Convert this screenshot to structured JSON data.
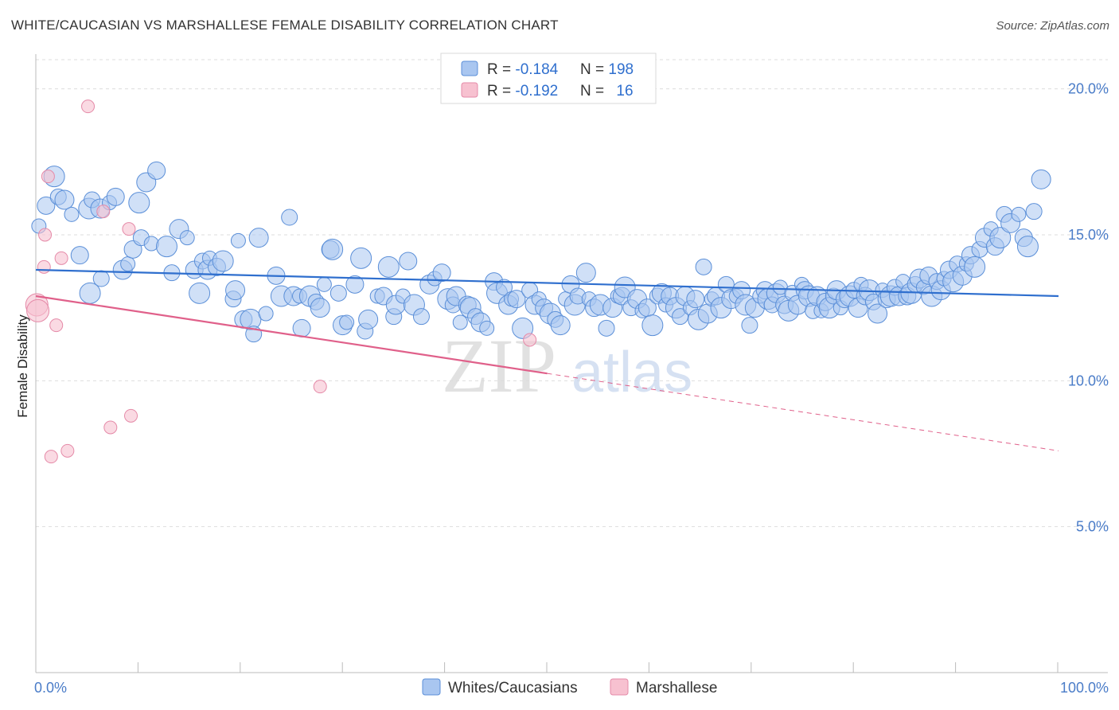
{
  "title": "WHITE/CAUCASIAN VS MARSHALLESE FEMALE DISABILITY CORRELATION CHART",
  "source": "Source: ZipAtlas.com",
  "watermark": {
    "zip": "ZIP",
    "atlas": "atlas"
  },
  "colors": {
    "blue_fill": "#a9c6f0",
    "blue_stroke": "#5b8fd8",
    "blue_line": "#2f6fce",
    "pink_fill": "#f7c1d0",
    "pink_stroke": "#e58aa8",
    "pink_line": "#e0608a",
    "tick_text": "#4a7cc8",
    "grid": "#dddddd"
  },
  "legend": {
    "rows": [
      {
        "r_label": "R = ",
        "r_value": "-0.184",
        "n_label": "N = ",
        "n_value": "198",
        "series": "blue"
      },
      {
        "r_label": "R = ",
        "r_value": "-0.192",
        "n_label": "N = ",
        "n_value": "16",
        "series": "pink"
      }
    ]
  },
  "chart_data": {
    "type": "scatter",
    "title": "WHITE/CAUCASIAN VS MARSHALLESE FEMALE DISABILITY CORRELATION CHART",
    "xlabel": "",
    "ylabel": "Female Disability",
    "xlim": [
      0,
      100
    ],
    "ylim": [
      0,
      21
    ],
    "x_tick_labels": [
      "0.0%",
      "100.0%"
    ],
    "y_ticks": [
      5,
      10,
      15,
      20
    ],
    "y_tick_labels": [
      "5.0%",
      "10.0%",
      "15.0%",
      "20.0%"
    ],
    "grid": true,
    "legend_position": "top-center",
    "series": [
      {
        "name": "Whites/Caucasians",
        "color": "#a9c6f0",
        "r": -0.184,
        "n": 198,
        "trend": {
          "x": [
            0,
            100
          ],
          "y": [
            13.8,
            12.9
          ]
        },
        "points": [
          [
            0.3,
            15.3
          ],
          [
            1,
            16
          ],
          [
            1.8,
            17
          ],
          [
            2.2,
            16.3
          ],
          [
            2.8,
            16.2
          ],
          [
            3.5,
            15.7
          ],
          [
            4.3,
            14.3
          ],
          [
            5.2,
            15.9
          ],
          [
            5.5,
            16.2
          ],
          [
            6.3,
            15.9
          ],
          [
            7.2,
            16.1
          ],
          [
            7.8,
            16.3
          ],
          [
            5.3,
            13.0
          ],
          [
            6.4,
            13.5
          ],
          [
            8.5,
            13.8
          ],
          [
            9,
            14
          ],
          [
            9.5,
            14.5
          ],
          [
            10.1,
            16.1
          ],
          [
            10.3,
            14.9
          ],
          [
            10.8,
            16.8
          ],
          [
            11.3,
            14.7
          ],
          [
            11.8,
            17.2
          ],
          [
            12.8,
            14.6
          ],
          [
            13.3,
            13.7
          ],
          [
            14,
            15.2
          ],
          [
            14.8,
            14.9
          ],
          [
            15.5,
            13.8
          ],
          [
            16,
            13
          ],
          [
            16.3,
            14.1
          ],
          [
            16.8,
            13.8
          ],
          [
            17,
            14.2
          ],
          [
            17.7,
            13.9
          ],
          [
            18.3,
            14.1
          ],
          [
            19.3,
            12.8
          ],
          [
            19.5,
            13.1
          ],
          [
            19.8,
            14.8
          ],
          [
            20.3,
            12.1
          ],
          [
            21,
            12.1
          ],
          [
            21.3,
            11.6
          ],
          [
            21.8,
            14.9
          ],
          [
            22.5,
            12.3
          ],
          [
            23.5,
            13.6
          ],
          [
            24,
            12.9
          ],
          [
            24.8,
            15.6
          ],
          [
            25.2,
            12.9
          ],
          [
            25.8,
            12.9
          ],
          [
            26,
            11.8
          ],
          [
            26.8,
            12.9
          ],
          [
            27.4,
            12.7
          ],
          [
            27.8,
            12.5
          ],
          [
            28.2,
            13.3
          ],
          [
            28.8,
            14.5
          ],
          [
            29,
            14.5
          ],
          [
            29.6,
            13
          ],
          [
            30,
            11.9
          ],
          [
            30.4,
            12
          ],
          [
            31.2,
            13.3
          ],
          [
            31.8,
            14.2
          ],
          [
            32.2,
            11.7
          ],
          [
            32.5,
            12.1
          ],
          [
            33.4,
            12.9
          ],
          [
            34,
            12.9
          ],
          [
            34.5,
            13.9
          ],
          [
            35,
            12.2
          ],
          [
            35.2,
            12.6
          ],
          [
            35.9,
            12.9
          ],
          [
            36.4,
            14.1
          ],
          [
            37,
            12.6
          ],
          [
            37.7,
            12.2
          ],
          [
            38.5,
            13.3
          ],
          [
            39,
            13.5
          ],
          [
            39.7,
            13.7
          ],
          [
            40.3,
            12.8
          ],
          [
            40.8,
            12.6
          ],
          [
            41.1,
            12.9
          ],
          [
            41.5,
            12.0
          ],
          [
            42.2,
            12.6
          ],
          [
            42.5,
            12.5
          ],
          [
            43,
            12.2
          ],
          [
            43.5,
            12.0
          ],
          [
            44.1,
            11.8
          ],
          [
            44.8,
            13.4
          ],
          [
            45.1,
            13.0
          ],
          [
            45.8,
            13.2
          ],
          [
            46.2,
            12.6
          ],
          [
            46.5,
            12.8
          ],
          [
            47,
            12.8
          ],
          [
            47.6,
            11.8
          ],
          [
            48.3,
            13.1
          ],
          [
            48.8,
            12.6
          ],
          [
            49.2,
            12.8
          ],
          [
            49.7,
            12.5
          ],
          [
            50.3,
            12.3
          ],
          [
            50.8,
            12.1
          ],
          [
            51.3,
            11.9
          ],
          [
            51.8,
            12.8
          ],
          [
            52.3,
            13.3
          ],
          [
            52.7,
            12.6
          ],
          [
            53,
            12.9
          ],
          [
            53.8,
            13.7
          ],
          [
            54.1,
            12.8
          ],
          [
            54.6,
            12.5
          ],
          [
            55.2,
            12.6
          ],
          [
            55.8,
            11.8
          ],
          [
            56.4,
            12.5
          ],
          [
            56.9,
            12.9
          ],
          [
            57.3,
            12.9
          ],
          [
            57.6,
            13.2
          ],
          [
            58.2,
            12.5
          ],
          [
            58.8,
            12.8
          ],
          [
            59.3,
            12.4
          ],
          [
            59.8,
            12.5
          ],
          [
            60.3,
            11.9
          ],
          [
            60.8,
            12.9
          ],
          [
            61.2,
            13.0
          ],
          [
            61.6,
            12.6
          ],
          [
            62,
            12.9
          ],
          [
            62.6,
            12.5
          ],
          [
            63,
            12.2
          ],
          [
            63.5,
            12.9
          ],
          [
            64,
            12.5
          ],
          [
            64.5,
            12.8
          ],
          [
            64.8,
            12.1
          ],
          [
            65.3,
            13.9
          ],
          [
            65.7,
            12.3
          ],
          [
            66.1,
            12.8
          ],
          [
            66.5,
            12.9
          ],
          [
            67,
            12.5
          ],
          [
            67.5,
            13.3
          ],
          [
            68,
            12.8
          ],
          [
            68.5,
            12.9
          ],
          [
            69,
            13.1
          ],
          [
            69.4,
            12.6
          ],
          [
            69.8,
            11.9
          ],
          [
            70.3,
            12.5
          ],
          [
            70.8,
            12.9
          ],
          [
            71.3,
            13.1
          ],
          [
            71.6,
            12.8
          ],
          [
            72,
            12.6
          ],
          [
            72.4,
            13.0
          ],
          [
            72.8,
            13.2
          ],
          [
            73.2,
            12.6
          ],
          [
            73.6,
            12.4
          ],
          [
            74,
            13
          ],
          [
            74.5,
            12.6
          ],
          [
            74.9,
            13.3
          ],
          [
            75.2,
            13.1
          ],
          [
            75.6,
            12.9
          ],
          [
            76,
            12.4
          ],
          [
            76.4,
            12.9
          ],
          [
            76.8,
            12.4
          ],
          [
            77.2,
            12.7
          ],
          [
            77.6,
            12.5
          ],
          [
            78,
            12.9
          ],
          [
            78.3,
            13.1
          ],
          [
            78.7,
            12.5
          ],
          [
            79.1,
            12.8
          ],
          [
            79.6,
            12.9
          ],
          [
            80,
            13.1
          ],
          [
            80.4,
            12.5
          ],
          [
            80.7,
            13.3
          ],
          [
            81.1,
            12.9
          ],
          [
            81.5,
            13.1
          ],
          [
            81.9,
            12.7
          ],
          [
            82.3,
            12.3
          ],
          [
            82.8,
            13.1
          ],
          [
            83.2,
            12.8
          ],
          [
            83.6,
            12.9
          ],
          [
            84,
            13.2
          ],
          [
            84.4,
            12.9
          ],
          [
            84.8,
            13.4
          ],
          [
            85.2,
            12.9
          ],
          [
            85.6,
            13
          ],
          [
            86,
            13.3
          ],
          [
            86.4,
            13.5
          ],
          [
            86.8,
            13.2
          ],
          [
            87.3,
            13.6
          ],
          [
            87.6,
            12.9
          ],
          [
            88.1,
            13.4
          ],
          [
            88.5,
            13.1
          ],
          [
            88.8,
            13.5
          ],
          [
            89.3,
            13.8
          ],
          [
            89.7,
            13.4
          ],
          [
            90.1,
            14
          ],
          [
            90.6,
            13.6
          ],
          [
            91,
            14
          ],
          [
            91.4,
            14.3
          ],
          [
            91.8,
            13.9
          ],
          [
            92.3,
            14.5
          ],
          [
            92.8,
            14.9
          ],
          [
            93.4,
            15.2
          ],
          [
            93.8,
            14.6
          ],
          [
            94.3,
            14.9
          ],
          [
            94.7,
            15.7
          ],
          [
            95.3,
            15.4
          ],
          [
            96.1,
            15.7
          ],
          [
            96.6,
            14.9
          ],
          [
            97,
            14.6
          ],
          [
            97.6,
            15.8
          ],
          [
            98.3,
            16.9
          ]
        ]
      },
      {
        "name": "Marshallese",
        "color": "#f7c1d0",
        "r": -0.192,
        "n": 16,
        "trend": {
          "x": [
            0,
            100
          ],
          "y": [
            12.9,
            7.6
          ],
          "solid_until": 50
        },
        "points": [
          [
            0.1,
            12.6
          ],
          [
            0.2,
            12.4
          ],
          [
            0.8,
            13.9
          ],
          [
            0.9,
            15.0
          ],
          [
            1.2,
            17
          ],
          [
            1.5,
            7.4
          ],
          [
            2,
            11.9
          ],
          [
            2.5,
            14.2
          ],
          [
            3.1,
            7.6
          ],
          [
            5.1,
            19.4
          ],
          [
            6.6,
            15.8
          ],
          [
            7.3,
            8.4
          ],
          [
            9.1,
            15.2
          ],
          [
            9.3,
            8.8
          ],
          [
            27.8,
            9.8
          ],
          [
            48.3,
            11.4
          ]
        ]
      }
    ]
  },
  "bottom_legend": [
    {
      "label": "Whites/Caucasians",
      "series": "blue"
    },
    {
      "label": "Marshallese",
      "series": "pink"
    }
  ]
}
